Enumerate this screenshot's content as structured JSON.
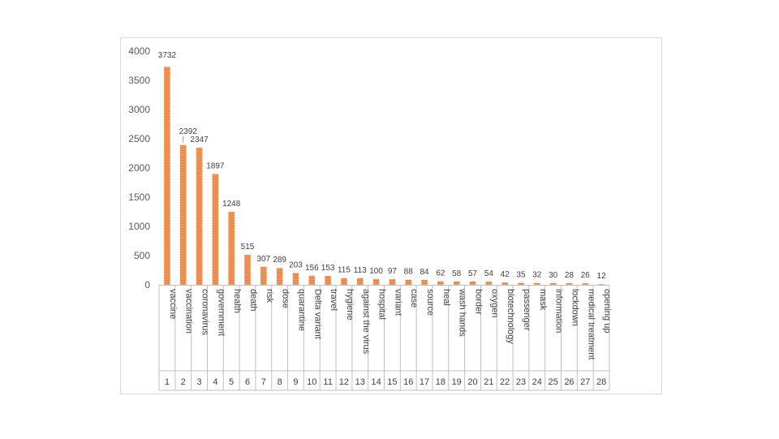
{
  "chart_data": {
    "type": "bar",
    "title": "",
    "xlabel": "",
    "ylabel": "",
    "ylim": [
      0,
      4000
    ],
    "yticks": [
      0,
      500,
      1000,
      1500,
      2000,
      2500,
      3000,
      3500,
      4000
    ],
    "grid": false,
    "bar_color": "#ed7d31",
    "categories": [
      "vaccine",
      "vaccination",
      "coronavirus",
      "government",
      "health",
      "death",
      "risk",
      "dose",
      "quarantine",
      "Delta variant",
      "travel",
      "hygiene",
      "against the virus",
      "hospital",
      "variant",
      "case",
      "source",
      "heal",
      "wash hands",
      "border",
      "oxygen",
      "biotechnology",
      "passenger",
      "mask",
      "information",
      "lockdown",
      "medical treatment",
      "opening up"
    ],
    "ranks": [
      "1",
      "2",
      "3",
      "4",
      "5",
      "6",
      "7",
      "8",
      "9",
      "10",
      "11",
      "12",
      "13",
      "14",
      "15",
      "16",
      "17",
      "18",
      "19",
      "20",
      "21",
      "22",
      "23",
      "24",
      "25",
      "26",
      "27",
      "28"
    ],
    "values": [
      3732,
      2392,
      2347,
      1897,
      1248,
      515,
      307,
      289,
      203,
      156,
      153,
      115,
      113,
      100,
      97,
      88,
      84,
      62,
      58,
      57,
      54,
      42,
      35,
      32,
      30,
      28,
      26,
      12
    ]
  }
}
